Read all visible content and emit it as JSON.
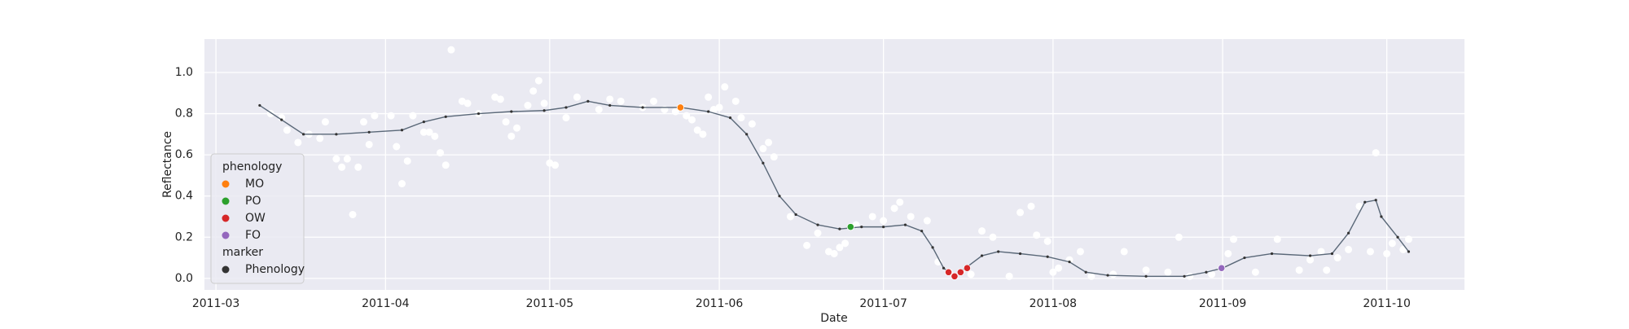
{
  "chart_data": {
    "type": "line",
    "xlabel": "Date",
    "ylabel": "Reflectance",
    "xlim": [
      -2.1,
      228.2
    ],
    "ylim": [
      -0.056,
      1.162
    ],
    "xticks": [
      {
        "value": 0,
        "label": "2011-03"
      },
      {
        "value": 31,
        "label": "2011-04"
      },
      {
        "value": 61,
        "label": "2011-05"
      },
      {
        "value": 92,
        "label": "2011-06"
      },
      {
        "value": 122,
        "label": "2011-07"
      },
      {
        "value": 153,
        "label": "2011-08"
      },
      {
        "value": 184,
        "label": "2011-09"
      },
      {
        "value": 214,
        "label": "2011-10"
      }
    ],
    "yticks": [
      {
        "value": 0,
        "label": "0.0"
      },
      0.2,
      0.4,
      0.6,
      0.8,
      {
        "value": 1,
        "label": "1.0"
      }
    ],
    "grid": true,
    "background": "#eaeaf2",
    "observations": {
      "color": "#ffffff",
      "x": [
        10,
        12,
        13,
        15,
        17,
        19,
        20,
        22,
        23,
        24,
        25,
        26,
        27,
        28,
        29,
        32,
        33,
        34,
        35,
        36,
        38,
        39,
        40,
        41,
        42,
        43,
        45,
        46,
        48,
        51,
        52,
        53,
        54,
        55,
        57,
        58,
        59,
        60,
        61,
        62,
        64,
        66,
        70,
        72,
        74,
        78,
        80,
        82,
        84,
        86,
        87,
        88,
        89,
        90,
        91,
        92,
        93,
        95,
        96,
        98,
        100,
        101,
        102,
        105,
        108,
        110,
        112,
        113,
        114,
        115,
        117,
        120,
        122,
        124,
        125,
        127,
        130,
        132,
        134,
        138,
        140,
        142,
        145,
        147,
        149,
        150,
        152,
        153,
        154,
        156,
        158,
        160,
        164,
        166,
        170,
        174,
        176,
        178,
        182,
        185,
        186,
        190,
        194,
        198,
        200,
        202,
        203,
        205,
        207,
        209,
        211,
        212,
        214,
        215,
        217,
        218
      ],
      "values": [
        0.8,
        0.78,
        0.72,
        0.66,
        0.7,
        0.68,
        0.76,
        0.58,
        0.54,
        0.58,
        0.31,
        0.54,
        0.76,
        0.65,
        0.79,
        0.79,
        0.64,
        0.46,
        0.57,
        0.79,
        0.71,
        0.71,
        0.69,
        0.61,
        0.55,
        1.11,
        0.86,
        0.85,
        0.8,
        0.88,
        0.87,
        0.76,
        0.69,
        0.73,
        0.84,
        0.91,
        0.96,
        0.85,
        0.56,
        0.55,
        0.78,
        0.88,
        0.82,
        0.87,
        0.86,
        0.83,
        0.86,
        0.82,
        0.81,
        0.79,
        0.77,
        0.72,
        0.7,
        0.88,
        0.82,
        0.83,
        0.93,
        0.86,
        0.78,
        0.75,
        0.63,
        0.66,
        0.59,
        0.3,
        0.16,
        0.22,
        0.13,
        0.12,
        0.15,
        0.17,
        0.26,
        0.3,
        0.28,
        0.34,
        0.37,
        0.3,
        0.28,
        0.08,
        0.03,
        0.02,
        0.23,
        0.2,
        0.01,
        0.32,
        0.35,
        0.21,
        0.18,
        0.03,
        0.05,
        0.09,
        0.13,
        0.01,
        0.02,
        0.13,
        0.04,
        0.03,
        0.2,
        0.01,
        0.02,
        0.12,
        0.19,
        0.03,
        0.19,
        0.04,
        0.09,
        0.13,
        0.04,
        0.1,
        0.14,
        0.35,
        0.13,
        0.61,
        0.12,
        0.17,
        0.14,
        0.19
      ]
    },
    "curve": {
      "color": "#5a6878",
      "x": [
        8,
        12,
        16,
        22,
        28,
        34,
        38,
        42,
        48,
        54,
        60,
        64,
        68,
        72,
        78,
        85,
        90,
        94,
        97,
        100,
        103,
        106,
        110,
        114,
        118,
        122,
        126,
        129,
        131,
        133,
        135,
        137,
        140,
        143,
        147,
        152,
        156,
        159,
        163,
        170,
        177,
        181,
        184,
        188,
        193,
        200,
        204,
        207,
        210,
        212,
        213,
        216,
        218
      ],
      "values": [
        0.84,
        0.77,
        0.7,
        0.7,
        0.71,
        0.72,
        0.76,
        0.785,
        0.8,
        0.81,
        0.815,
        0.83,
        0.86,
        0.84,
        0.83,
        0.83,
        0.81,
        0.78,
        0.7,
        0.56,
        0.4,
        0.31,
        0.26,
        0.24,
        0.25,
        0.25,
        0.26,
        0.23,
        0.15,
        0.05,
        0.01,
        0.05,
        0.11,
        0.13,
        0.12,
        0.105,
        0.08,
        0.03,
        0.015,
        0.01,
        0.01,
        0.03,
        0.05,
        0.1,
        0.12,
        0.11,
        0.12,
        0.22,
        0.37,
        0.38,
        0.3,
        0.2,
        0.13
      ]
    },
    "phenology": {
      "title": "phenology",
      "series": [
        {
          "name": "MO",
          "color": "#ff7f0e",
          "x": [
            84.9
          ],
          "values": [
            0.83
          ]
        },
        {
          "name": "PO",
          "color": "#2ca02c",
          "x": [
            116
          ],
          "values": [
            0.25
          ]
        },
        {
          "name": "OW",
          "color": "#d62728",
          "x": [
            133.9,
            135,
            136.1,
            137.3
          ],
          "values": [
            0.03,
            0.01,
            0.03,
            0.05
          ]
        },
        {
          "name": "FO",
          "color": "#9467bd",
          "x": [
            183.8
          ],
          "values": [
            0.05
          ]
        }
      ]
    },
    "marker": {
      "title": "marker",
      "name": "Phenology",
      "color": "#333333"
    },
    "legend": "lower left"
  }
}
